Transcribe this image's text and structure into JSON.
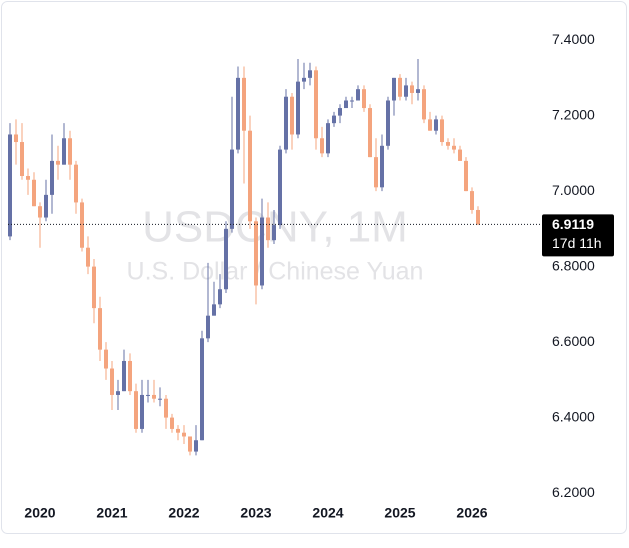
{
  "chart_data": {
    "type": "candlestick",
    "watermark_symbol": "USDCNY, 1M",
    "watermark_name": "U.S. Dollar / Chinese Yuan",
    "countdown": "17d 11h",
    "up_color": "#6571a6",
    "down_color": "#f4a47e",
    "categories": [
      null,
      null,
      null,
      null,
      null,
      "2020",
      null,
      null,
      null,
      null,
      null,
      null,
      null,
      null,
      null,
      null,
      null,
      "2021",
      null,
      null,
      null,
      null,
      null,
      null,
      null,
      null,
      null,
      null,
      null,
      "2022",
      null,
      null,
      null,
      null,
      null,
      null,
      null,
      null,
      null,
      null,
      null,
      "2023",
      null,
      null,
      null,
      null,
      null,
      null,
      null,
      null,
      null,
      null,
      null,
      "2024",
      null,
      null,
      null,
      null,
      null,
      null,
      null,
      null,
      null,
      null,
      null,
      "2025",
      null,
      null,
      null,
      null,
      null,
      null,
      null,
      null,
      null,
      null,
      null,
      "2026",
      null
    ],
    "open": [
      6.88,
      7.15,
      7.13,
      7.04,
      7.03,
      6.96,
      6.93,
      6.99,
      7.08,
      7.07,
      7.14,
      7.07,
      6.97,
      6.85,
      6.8,
      6.69,
      6.58,
      6.53,
      6.46,
      6.47,
      6.55,
      6.47,
      6.37,
      6.46,
      6.46,
      6.45,
      6.45,
      6.4,
      6.37,
      6.36,
      6.35,
      6.31,
      6.34,
      6.61,
      6.67,
      6.7,
      6.74,
      6.9,
      7.11,
      7.3,
      7.16,
      6.92,
      6.75,
      6.93,
      6.87,
      6.91,
      7.11,
      7.25,
      7.15,
      7.29,
      7.3,
      7.32,
      7.14,
      7.1,
      7.18,
      7.2,
      7.22,
      7.24,
      7.24,
      7.27,
      7.22,
      7.09,
      7.01,
      7.12,
      7.24,
      7.3,
      7.25,
      7.28,
      7.26,
      7.27,
      7.19,
      7.16,
      7.19,
      7.13,
      7.12,
      7.11,
      7.08,
      7.0,
      6.95
    ],
    "high": [
      7.18,
      7.19,
      7.18,
      7.06,
      7.05,
      6.97,
      7.03,
      7.15,
      7.12,
      7.18,
      7.16,
      7.08,
      6.98,
      6.88,
      6.82,
      6.72,
      6.6,
      6.55,
      6.5,
      6.58,
      6.57,
      6.49,
      6.5,
      6.5,
      6.5,
      6.48,
      6.46,
      6.41,
      6.38,
      6.38,
      6.35,
      6.38,
      6.63,
      6.81,
      6.76,
      6.78,
      6.92,
      7.25,
      7.33,
      7.33,
      7.2,
      6.93,
      6.98,
      6.97,
      6.95,
      7.12,
      7.27,
      7.26,
      7.35,
      7.34,
      7.34,
      7.33,
      7.17,
      7.19,
      7.21,
      7.23,
      7.25,
      7.25,
      7.28,
      7.28,
      7.23,
      7.14,
      7.15,
      7.25,
      7.3,
      7.31,
      7.3,
      7.29,
      7.35,
      7.28,
      7.21,
      7.2,
      7.2,
      7.14,
      7.14,
      7.12,
      7.09,
      7.01,
      6.96
    ],
    "low": [
      6.87,
      7.07,
      7.03,
      6.99,
      6.96,
      6.85,
      6.92,
      6.94,
      7.03,
      7.07,
      7.03,
      6.94,
      6.84,
      6.78,
      6.65,
      6.55,
      6.5,
      6.42,
      6.42,
      6.47,
      6.46,
      6.36,
      6.36,
      6.44,
      6.44,
      6.43,
      6.37,
      6.36,
      6.34,
      6.33,
      6.3,
      6.3,
      6.34,
      6.6,
      6.67,
      6.69,
      6.73,
      6.89,
      7.1,
      7.02,
      6.9,
      6.7,
      6.74,
      6.85,
      6.86,
      6.9,
      7.1,
      7.11,
      7.14,
      7.27,
      7.28,
      7.11,
      7.09,
      7.09,
      7.17,
      7.18,
      7.22,
      7.22,
      7.24,
      7.21,
      7.09,
      7.0,
      7.0,
      7.11,
      7.2,
      7.24,
      7.24,
      7.23,
      7.24,
      7.18,
      7.16,
      7.15,
      7.12,
      7.11,
      7.1,
      7.08,
      7.0,
      6.94,
      6.91
    ],
    "close": [
      7.15,
      7.13,
      7.04,
      7.03,
      6.96,
      6.93,
      6.99,
      7.08,
      7.07,
      7.14,
      7.07,
      6.97,
      6.85,
      6.8,
      6.69,
      6.58,
      6.53,
      6.46,
      6.47,
      6.55,
      6.47,
      6.37,
      6.46,
      6.46,
      6.45,
      6.45,
      6.4,
      6.37,
      6.36,
      6.35,
      6.31,
      6.34,
      6.61,
      6.67,
      6.7,
      6.74,
      6.9,
      7.11,
      7.3,
      7.16,
      6.92,
      6.75,
      6.93,
      6.87,
      6.91,
      7.11,
      7.25,
      7.15,
      7.29,
      7.3,
      7.32,
      7.14,
      7.1,
      7.18,
      7.2,
      7.22,
      7.24,
      7.24,
      7.27,
      7.22,
      7.09,
      7.01,
      7.12,
      7.24,
      7.3,
      7.25,
      7.28,
      7.26,
      7.27,
      7.19,
      7.16,
      7.19,
      7.13,
      7.12,
      7.11,
      7.08,
      7.0,
      6.95,
      6.9119
    ],
    "ylim": [
      6.187,
      7.493
    ],
    "yticks": [
      {
        "value": 6.2,
        "label": "6.2000"
      },
      {
        "value": 6.4,
        "label": "6.4000"
      },
      {
        "value": 6.6,
        "label": "6.6000"
      },
      {
        "value": 6.8,
        "label": "6.8000"
      },
      {
        "value": 7.0,
        "label": "7.0000"
      },
      {
        "value": 7.2,
        "label": "7.2000"
      },
      {
        "value": 7.4,
        "label": "7.4000"
      }
    ]
  }
}
